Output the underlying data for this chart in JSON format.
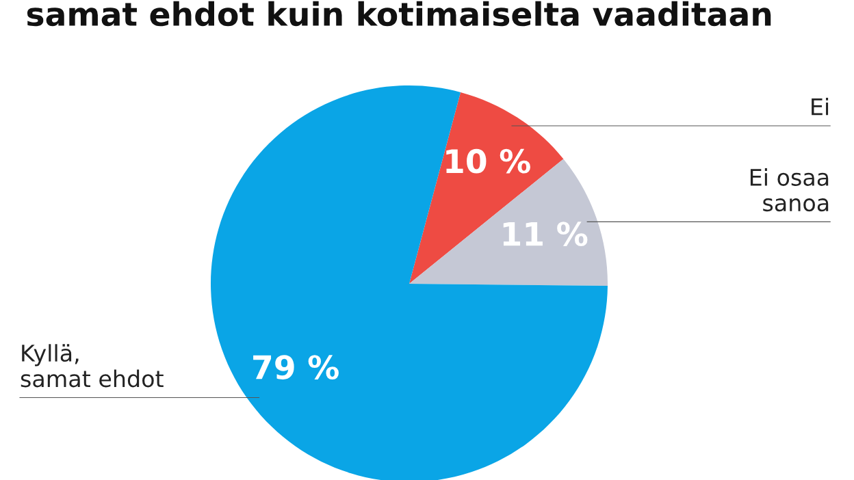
{
  "chart_data": {
    "type": "pie",
    "title": "samat ehdot kuin kotimaiselta vaaditaan",
    "categories": [
      "Ei",
      "Ei osaa\nsanoa",
      "Kyllä,\nsamat ehdot"
    ],
    "values": [
      10,
      11,
      79
    ],
    "colors": [
      "#ee4b43",
      "#c5c8d5",
      "#0aa5e6"
    ],
    "value_labels": [
      "10 %",
      "11 %",
      "79 %"
    ],
    "legend": false
  }
}
